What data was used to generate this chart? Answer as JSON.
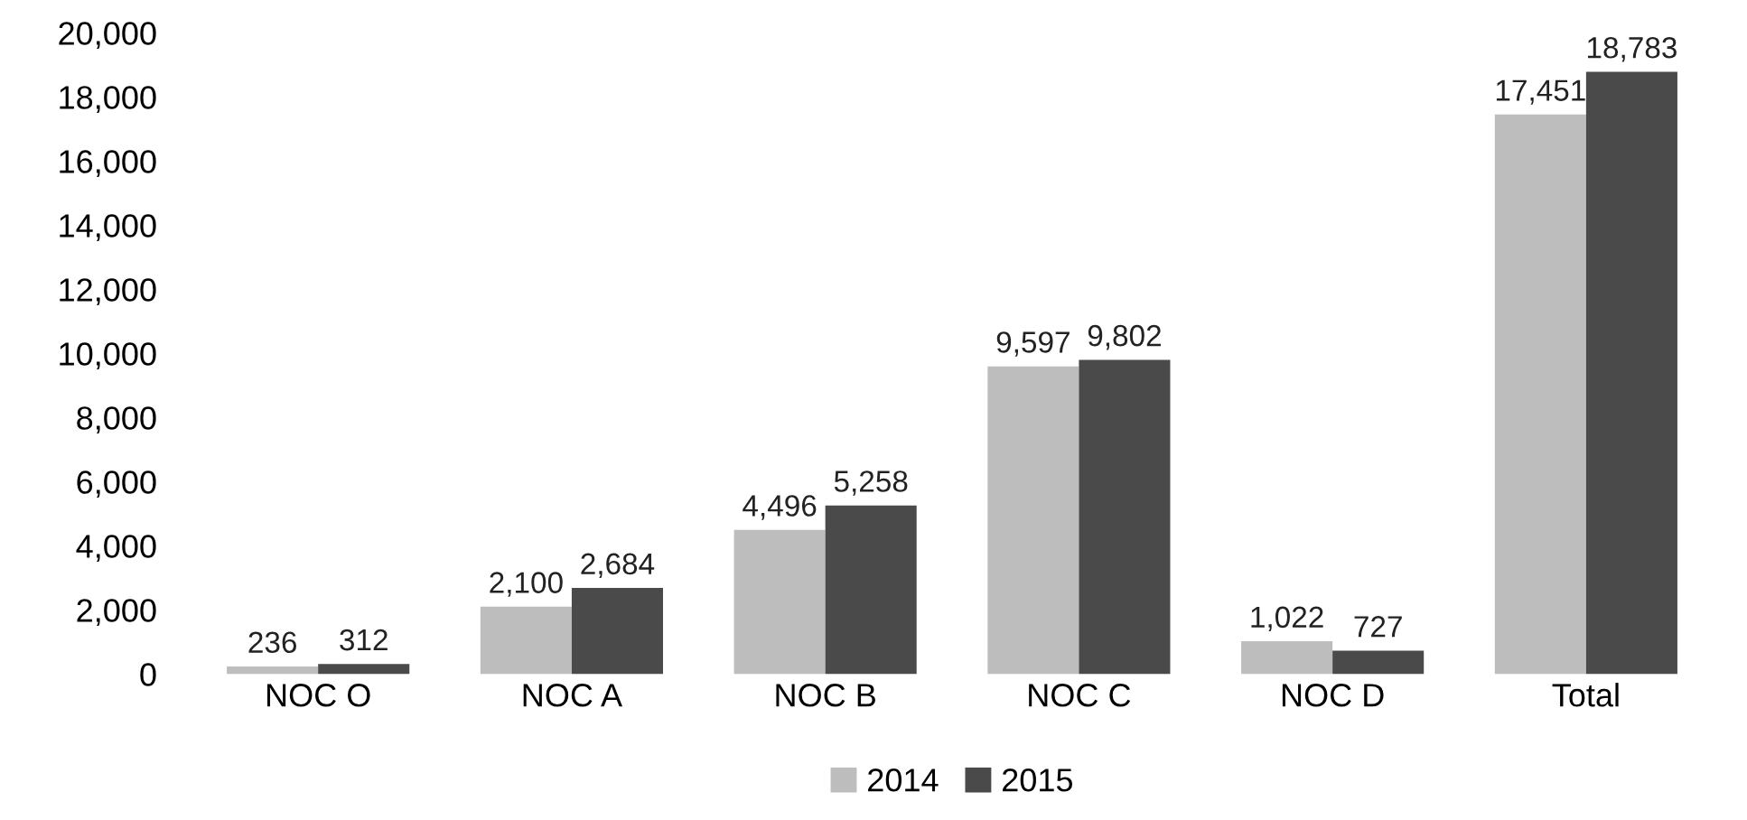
{
  "chart_data": {
    "type": "bar",
    "categories": [
      "NOC O",
      "NOC A",
      "NOC B",
      "NOC C",
      "NOC D",
      "Total"
    ],
    "series": [
      {
        "name": "2014",
        "color": "#bdbdbd",
        "values": [
          236,
          2100,
          4496,
          9597,
          1022,
          17451
        ]
      },
      {
        "name": "2015",
        "color": "#4a4a4a",
        "values": [
          312,
          2684,
          5258,
          9802,
          727,
          18783
        ]
      }
    ],
    "ylim": [
      0,
      20000
    ],
    "yticks": [
      {
        "value": 0,
        "label": "0"
      },
      {
        "value": 2000,
        "label": "2,000"
      },
      {
        "value": 4000,
        "label": "4,000"
      },
      {
        "value": 6000,
        "label": "6,000"
      },
      {
        "value": 8000,
        "label": "8,000"
      },
      {
        "value": 10000,
        "label": "10,000"
      },
      {
        "value": 12000,
        "label": "12,000"
      },
      {
        "value": 14000,
        "label": "14,000"
      },
      {
        "value": 16000,
        "label": "16,000"
      },
      {
        "value": 18000,
        "label": "18,000"
      },
      {
        "value": 20000,
        "label": "20,000"
      }
    ],
    "value_labels": [
      [
        "236",
        "2,100",
        "4,496",
        "9,597",
        "1,022",
        "17,451"
      ],
      [
        "312",
        "2,684",
        "5,258",
        "9,802",
        "727",
        "18,783"
      ]
    ],
    "grid": false,
    "legend": "bottom"
  }
}
